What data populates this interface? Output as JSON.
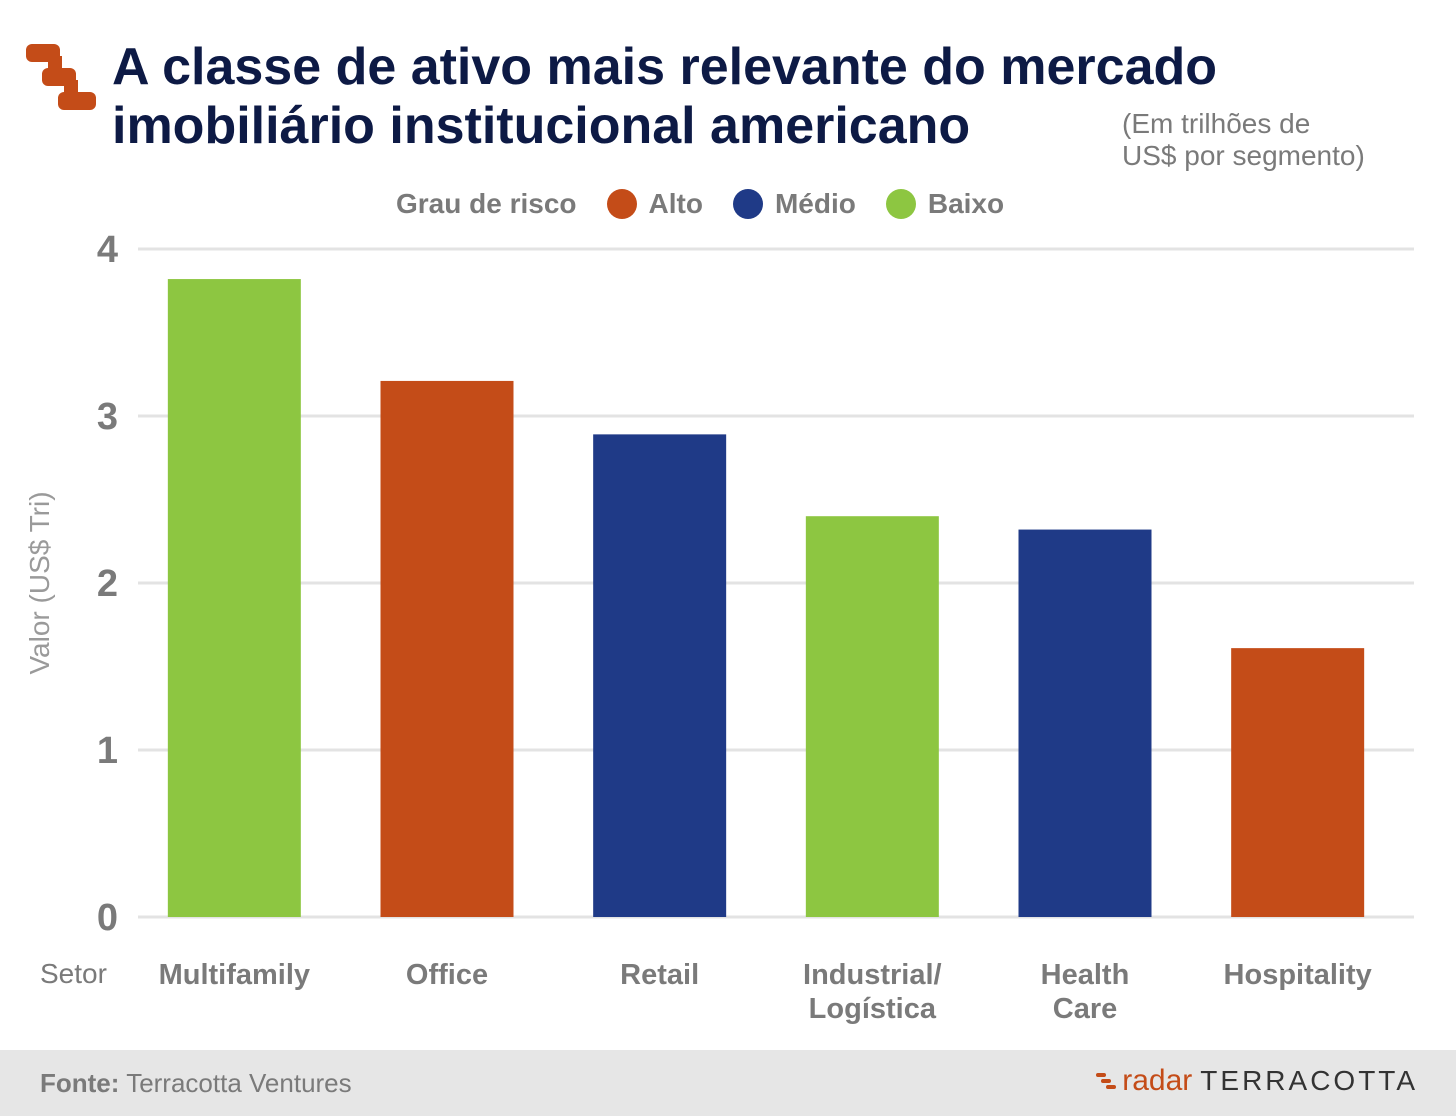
{
  "header": {
    "title_line1": "A classe de ativo mais relevante do mercado",
    "title_line2": "imobiliário institucional americano",
    "subtitle_line1": "(Em trilhões de",
    "subtitle_line2": "US$ por segmento)"
  },
  "legend": {
    "title": "Grau de risco",
    "items": [
      {
        "label": "Alto",
        "color": "#c44c18"
      },
      {
        "label": "Médio",
        "color": "#1f3a87"
      },
      {
        "label": "Baixo",
        "color": "#8dc641"
      }
    ]
  },
  "footer": {
    "source_label": "Fonte:",
    "source_value": "Terracotta Ventures",
    "brand_radar": "radar",
    "brand_name": "TERRACOTTA"
  },
  "chart_data": {
    "type": "bar",
    "title": "A classe de ativo mais relevante do mercado imobiliário institucional americano",
    "xlabel": "Setor",
    "ylabel": "Valor (US$ Tri)",
    "ylim": [
      0,
      4
    ],
    "yticks": [
      "0",
      "1",
      "2",
      "3",
      "4"
    ],
    "grid": true,
    "legend_position": "top",
    "categories": [
      [
        "Multifamily"
      ],
      [
        "Office"
      ],
      [
        "Retail"
      ],
      [
        "Industrial/",
        "Logística"
      ],
      [
        "Health",
        "Care"
      ],
      [
        "Hospitality"
      ]
    ],
    "values": [
      3.82,
      3.21,
      2.89,
      2.4,
      2.32,
      1.61
    ],
    "risk": [
      "Baixo",
      "Alto",
      "Médio",
      "Baixo",
      "Médio",
      "Alto"
    ],
    "colors": {
      "Alto": "#c44c18",
      "Médio": "#1f3a87",
      "Baixo": "#8dc641"
    }
  }
}
